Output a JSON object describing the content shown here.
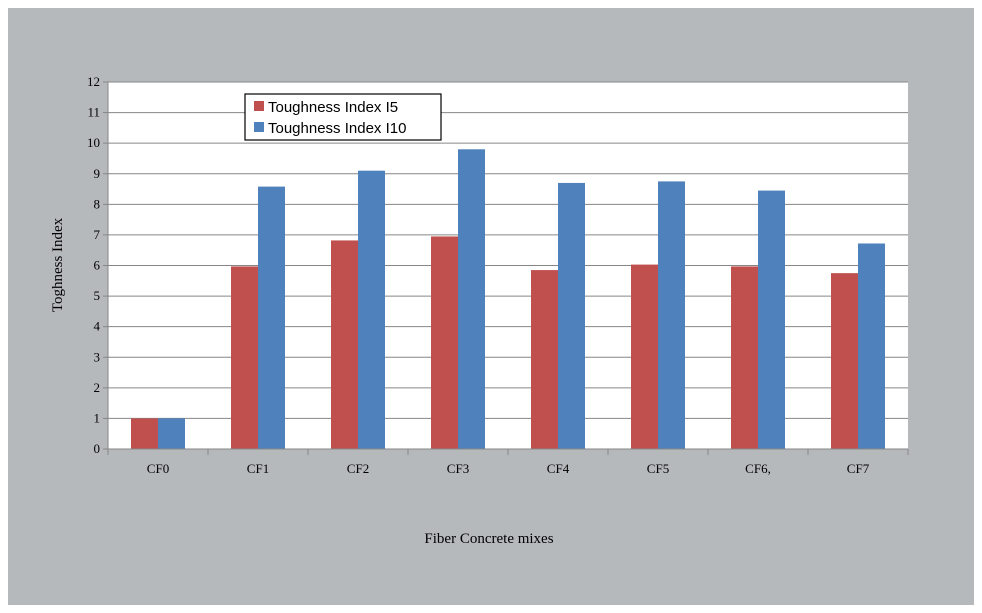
{
  "chart_data": {
    "type": "bar",
    "title": "",
    "xlabel": "Fiber Concrete mixes",
    "ylabel": "Toghness Index",
    "ylim": [
      0,
      12
    ],
    "yticks": [
      "0",
      "1",
      "2",
      "3",
      "4",
      "5",
      "6",
      "7",
      "8",
      "9",
      "10",
      "11",
      "12"
    ],
    "grid": true,
    "legend_position": "top-left",
    "categories": [
      "CF0",
      "CF1",
      "CF2",
      "CF3",
      "CF4",
      "CF5",
      "CF6,",
      "CF7"
    ],
    "series": [
      {
        "name": "Toughness Index I5",
        "color": "#c0504d",
        "values": [
          1.0,
          5.97,
          6.82,
          6.95,
          5.85,
          6.03,
          5.97,
          5.75
        ]
      },
      {
        "name": "Toughness Index I10",
        "color": "#4f81bd",
        "values": [
          1.0,
          8.58,
          9.1,
          9.8,
          8.7,
          8.75,
          8.45,
          6.72
        ]
      }
    ]
  }
}
